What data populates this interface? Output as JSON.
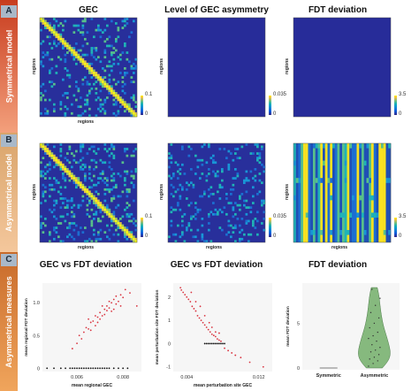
{
  "rows": [
    {
      "letter": "A",
      "band_label": "Symmetrical model",
      "color_top": "#c83c1e",
      "color_bottom": "#f3a07c"
    },
    {
      "letter": "B",
      "band_label": "Asymmetrical model",
      "color_top": "#d9a46a",
      "color_bottom": "#f4c79c"
    },
    {
      "letter": "C",
      "band_label": "Asymmetrical measures",
      "color_top": "#c86a2a",
      "color_bottom": "#f0a55c"
    }
  ],
  "panels": {
    "a1": {
      "title": "GEC",
      "xlabel": "regions",
      "ylabel": "regions",
      "cbar_max": "0.1",
      "cbar_min": "0"
    },
    "a2": {
      "title": "Level of GEC asymmetry",
      "ylabel": "regions",
      "cbar_max": "0.035",
      "cbar_min": "0"
    },
    "a3": {
      "title": "FDT deviation",
      "ylabel": "regions",
      "cbar_max": "3.5",
      "cbar_min": "0"
    },
    "b1": {
      "xlabel": "regions",
      "ylabel": "regions",
      "cbar_max": "0.1",
      "cbar_min": "0"
    },
    "b2": {
      "xlabel": "regions",
      "ylabel": "regions",
      "cbar_max": "0.035",
      "cbar_min": "0"
    },
    "b3": {
      "xlabel": "regions",
      "ylabel": "regions",
      "cbar_max": "3.5",
      "cbar_min": "0"
    }
  },
  "colors": {
    "heat_low": "#282f9b",
    "heat_high": "#f9fb0e",
    "scatter_red": "#d9333f",
    "scatter_black": "#111111",
    "violin_fill": "#86b97e"
  },
  "chart_data": [
    {
      "type": "scatter",
      "title": "GEC vs FDT deviation",
      "xlabel": "mean regional GEC",
      "ylabel": "mean regional FDT deviation",
      "xlim": [
        0.0045,
        0.0088
      ],
      "ylim": [
        -0.05,
        1.3
      ],
      "x_ticks": [
        "0.006",
        "0.008"
      ],
      "y_ticks": [
        "0",
        "0.5",
        "1.0"
      ],
      "series": [
        {
          "color": "#d9333f",
          "points": [
            [
              0.0063,
              0.55
            ],
            [
              0.0064,
              0.62
            ],
            [
              0.0065,
              0.6
            ],
            [
              0.0066,
              0.7
            ],
            [
              0.0067,
              0.72
            ],
            [
              0.0066,
              0.58
            ],
            [
              0.0068,
              0.65
            ],
            [
              0.0069,
              0.78
            ],
            [
              0.007,
              0.75
            ],
            [
              0.007,
              0.85
            ],
            [
              0.0071,
              0.8
            ],
            [
              0.0072,
              0.9
            ],
            [
              0.0072,
              0.82
            ],
            [
              0.0073,
              0.95
            ],
            [
              0.0073,
              0.88
            ],
            [
              0.0074,
              0.92
            ],
            [
              0.0075,
              1.0
            ],
            [
              0.0075,
              0.87
            ],
            [
              0.0076,
              1.05
            ],
            [
              0.0077,
              0.98
            ],
            [
              0.0077,
              1.1
            ],
            [
              0.0078,
              1.02
            ],
            [
              0.0079,
              1.12
            ],
            [
              0.008,
              1.08
            ],
            [
              0.0081,
              1.2
            ],
            [
              0.0068,
              0.8
            ],
            [
              0.0069,
              0.7
            ],
            [
              0.0071,
              0.95
            ],
            [
              0.0074,
              1.02
            ],
            [
              0.0062,
              0.45
            ],
            [
              0.0061,
              0.5
            ],
            [
              0.006,
              0.38
            ],
            [
              0.0058,
              0.3
            ],
            [
              0.0065,
              0.75
            ],
            [
              0.0076,
              0.9
            ],
            [
              0.0079,
              0.95
            ],
            [
              0.0086,
              0.95
            ],
            [
              0.0083,
              1.15
            ]
          ]
        },
        {
          "color": "#111111",
          "points": [
            [
              0.0047,
              0.0
            ],
            [
              0.005,
              0.0
            ],
            [
              0.0053,
              0.0
            ],
            [
              0.0055,
              0.0
            ],
            [
              0.0057,
              0.0
            ],
            [
              0.0058,
              0.0
            ],
            [
              0.0059,
              0.0
            ],
            [
              0.006,
              0.0
            ],
            [
              0.0061,
              0.0
            ],
            [
              0.0062,
              0.0
            ],
            [
              0.0063,
              0.0
            ],
            [
              0.0064,
              0.0
            ],
            [
              0.0065,
              0.0
            ],
            [
              0.0066,
              0.0
            ],
            [
              0.0067,
              0.0
            ],
            [
              0.0068,
              0.0
            ],
            [
              0.0069,
              0.0
            ],
            [
              0.007,
              0.0
            ],
            [
              0.0071,
              0.0
            ],
            [
              0.0072,
              0.0
            ],
            [
              0.0073,
              0.0
            ],
            [
              0.0074,
              0.0
            ],
            [
              0.0076,
              0.0
            ],
            [
              0.0078,
              0.0
            ],
            [
              0.008,
              0.0
            ],
            [
              0.0082,
              0.0
            ]
          ]
        }
      ]
    },
    {
      "type": "scatter",
      "title": "GEC vs FDT deviation",
      "xlabel": "mean perturbation site GEC",
      "ylabel": "mean perturbation site FDT deviation",
      "xlim": [
        0.0025,
        0.0135
      ],
      "ylim": [
        -1.2,
        2.6
      ],
      "x_ticks": [
        "0.004",
        "0.012"
      ],
      "y_ticks": [
        "2",
        "1",
        "0",
        "-1"
      ],
      "series": [
        {
          "color": "#d9333f",
          "points": [
            [
              0.0033,
              2.4
            ],
            [
              0.0034,
              2.3
            ],
            [
              0.0036,
              2.2
            ],
            [
              0.0038,
              2.1
            ],
            [
              0.004,
              2.0
            ],
            [
              0.0042,
              1.9
            ],
            [
              0.0044,
              1.8
            ],
            [
              0.0046,
              1.6
            ],
            [
              0.0048,
              1.5
            ],
            [
              0.005,
              1.4
            ],
            [
              0.0052,
              1.2
            ],
            [
              0.0054,
              1.1
            ],
            [
              0.0056,
              1.0
            ],
            [
              0.0058,
              0.9
            ],
            [
              0.006,
              0.8
            ],
            [
              0.0062,
              0.7
            ],
            [
              0.0064,
              0.6
            ],
            [
              0.0066,
              0.5
            ],
            [
              0.0068,
              0.4
            ],
            [
              0.007,
              0.35
            ],
            [
              0.0072,
              0.3
            ],
            [
              0.0074,
              0.2
            ],
            [
              0.0076,
              0.15
            ],
            [
              0.0078,
              0.1
            ],
            [
              0.0082,
              -0.2
            ],
            [
              0.0086,
              -0.3
            ],
            [
              0.009,
              -0.4
            ],
            [
              0.0094,
              -0.5
            ],
            [
              0.01,
              -0.6
            ],
            [
              0.011,
              -0.8
            ],
            [
              0.0125,
              -1.0
            ],
            [
              0.0045,
              2.2
            ],
            [
              0.005,
              1.8
            ],
            [
              0.0055,
              1.6
            ],
            [
              0.006,
              1.2
            ],
            [
              0.0065,
              0.9
            ],
            [
              0.0068,
              0.7
            ],
            [
              0.0072,
              0.5
            ],
            [
              0.0076,
              0.45
            ]
          ]
        },
        {
          "color": "#111111",
          "points": [
            [
              0.006,
              0.0
            ],
            [
              0.0062,
              0.0
            ],
            [
              0.0064,
              0.0
            ],
            [
              0.0066,
              0.0
            ],
            [
              0.0068,
              0.0
            ],
            [
              0.007,
              0.0
            ],
            [
              0.0072,
              0.0
            ],
            [
              0.0074,
              0.0
            ],
            [
              0.0076,
              0.0
            ],
            [
              0.0078,
              0.0
            ],
            [
              0.008,
              0.0
            ],
            [
              0.0082,
              0.0
            ]
          ]
        }
      ]
    },
    {
      "type": "violin",
      "title": "FDT deviation",
      "ylabel": "mean FDT deviation",
      "categories": [
        "Symmetric",
        "Asymmetric"
      ],
      "ylim": [
        -0.2,
        9.5
      ],
      "y_ticks": [
        "0",
        "5"
      ],
      "series": [
        {
          "name": "Symmetric",
          "values": [
            0,
            0,
            0,
            0,
            0,
            0
          ]
        },
        {
          "name": "Asymmetric",
          "values": [
            0.2,
            0.5,
            0.8,
            1.0,
            1.2,
            1.5,
            1.8,
            2.0,
            2.3,
            2.6,
            3.0,
            3.3,
            3.6,
            4.0,
            4.5,
            5.0,
            5.6,
            6.2,
            7.0,
            7.8,
            8.8
          ]
        }
      ]
    }
  ]
}
